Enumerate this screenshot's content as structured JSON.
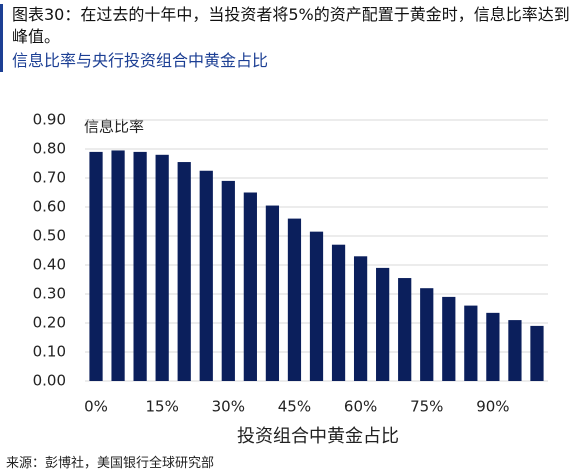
{
  "chart_data": {
    "type": "bar",
    "title": "图表30：在过去的十年中，当投资者将5%的资产配置于黄金时，信息比率达到峰值。",
    "subtitle": "信息比率与央行投资组合中黄金占比",
    "y_label": "信息比率",
    "x_label": "投资组合中黄金占比",
    "source": "来源：彭博社，美国银行全球研究部",
    "categories": [
      "0%",
      null,
      null,
      "15%",
      null,
      null,
      "30%",
      null,
      null,
      "45%",
      null,
      null,
      "60%",
      null,
      null,
      "75%",
      null,
      null,
      "90%",
      null,
      null
    ],
    "values": [
      0.79,
      0.795,
      0.79,
      0.78,
      0.755,
      0.725,
      0.69,
      0.65,
      0.605,
      0.56,
      0.515,
      0.47,
      0.43,
      0.39,
      0.355,
      0.32,
      0.29,
      0.26,
      0.235,
      0.21,
      0.19
    ],
    "color": "#0b1f5c",
    "ylim": [
      0,
      0.9
    ],
    "yticks": [
      {
        "value": 0,
        "label": "0.00"
      },
      {
        "value": 0.1,
        "label": "0.10"
      },
      {
        "value": 0.2,
        "label": "0.20"
      },
      {
        "value": 0.3,
        "label": "0.30"
      },
      {
        "value": 0.4,
        "label": "0.40"
      },
      {
        "value": 0.5,
        "label": "0.50"
      },
      {
        "value": 0.6,
        "label": "0.60"
      },
      {
        "value": 0.7,
        "label": "0.70"
      },
      {
        "value": 0.8,
        "label": "0.80"
      },
      {
        "value": 0.9,
        "label": "0.90"
      }
    ],
    "grid": true
  }
}
